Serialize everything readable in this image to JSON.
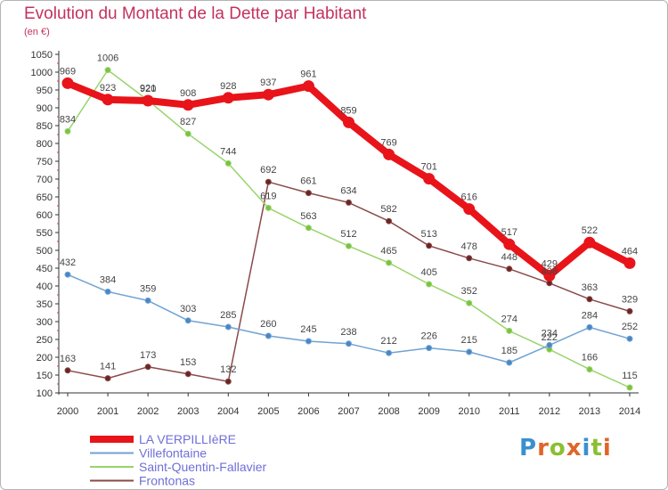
{
  "title": "Evolution du Montant de la Dette par Habitant",
  "subtitle": "(en €)",
  "brand": {
    "text": "Proxiti",
    "letter_colors": [
      "#3a8fd0",
      "#e0652a",
      "#8bbf32",
      "#e0652a",
      "#3a8fd0",
      "#8bbf32",
      "#e0652a"
    ]
  },
  "chart_data": {
    "type": "line",
    "title": "Evolution du Montant de la Dette par Habitant",
    "subtitle": "(en €)",
    "xlabel": "",
    "ylabel": "",
    "x": [
      "2000",
      "2001",
      "2002",
      "2003",
      "2004",
      "2005",
      "2006",
      "2007",
      "2008",
      "2009",
      "2010",
      "2011",
      "2012",
      "2013",
      "2014"
    ],
    "ylim": [
      100,
      1050
    ],
    "yticks": [
      100,
      150,
      200,
      250,
      300,
      350,
      400,
      450,
      500,
      550,
      600,
      650,
      700,
      750,
      800,
      850,
      900,
      950,
      1000,
      1050
    ],
    "grid": false,
    "legend_position": "bottom-left",
    "series": [
      {
        "name": "LA VERPILLIèRE",
        "color": "#e8141a",
        "marker_fill": "#e8141a",
        "width": 8,
        "values": [
          969,
          923,
          920,
          908,
          928,
          937,
          961,
          859,
          769,
          701,
          616,
          517,
          429,
          522,
          464
        ]
      },
      {
        "name": "Villefontaine",
        "color": "#6fa3d3",
        "marker_fill": "#4a86c4",
        "width": 1.5,
        "values": [
          432,
          384,
          359,
          303,
          285,
          260,
          245,
          238,
          212,
          226,
          215,
          185,
          234,
          284,
          252
        ]
      },
      {
        "name": "Saint-Quentin-Fallavier",
        "color": "#98d46a",
        "marker_fill": "#7bc242",
        "width": 1.5,
        "values": [
          834,
          1006,
          921,
          827,
          744,
          619,
          563,
          512,
          465,
          405,
          352,
          274,
          222,
          166,
          115
        ]
      },
      {
        "name": "Frontonas",
        "color": "#8a4a4a",
        "marker_fill": "#6b2424",
        "width": 1.5,
        "values": [
          163,
          141,
          173,
          153,
          132,
          692,
          661,
          634,
          582,
          513,
          478,
          448,
          408,
          363,
          329
        ]
      }
    ]
  }
}
